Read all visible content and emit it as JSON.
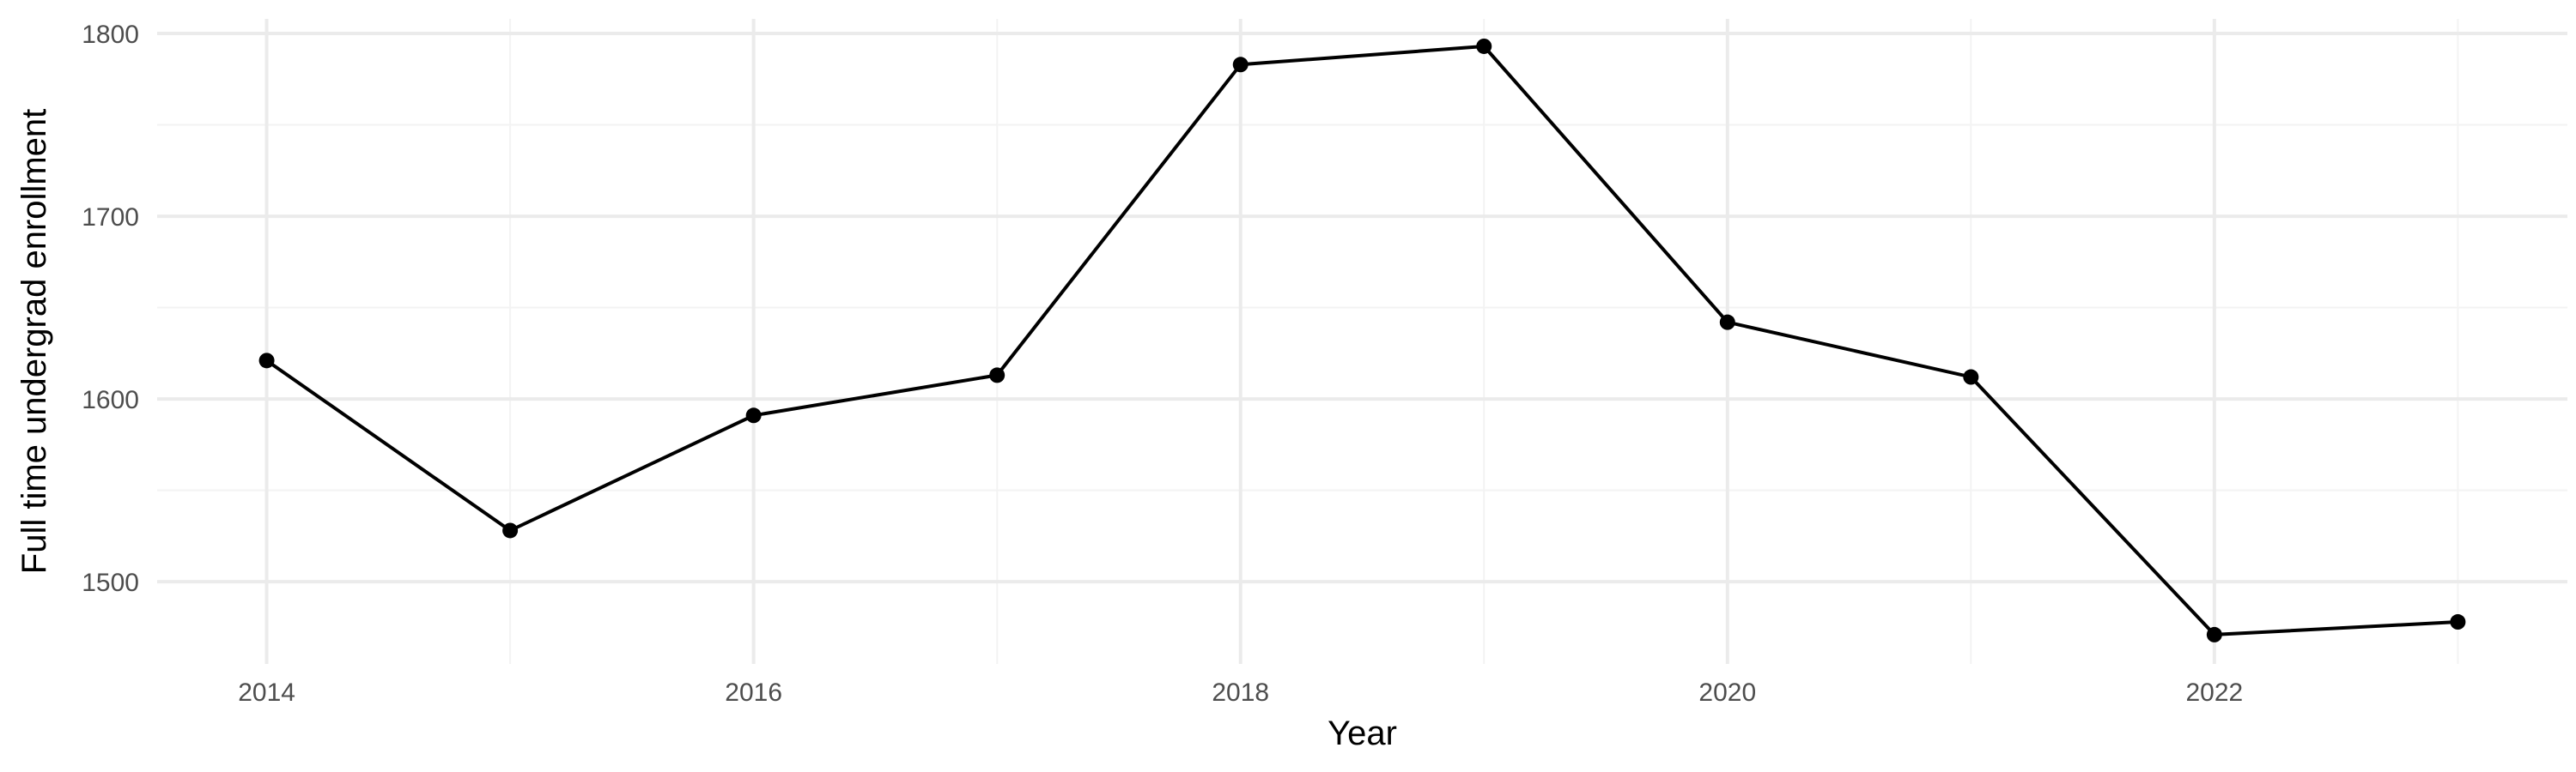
{
  "chart_data": {
    "type": "line",
    "title": "",
    "xlabel": "Year",
    "ylabel": "Full time undergrad enrollment",
    "x": [
      2014,
      2015,
      2016,
      2017,
      2018,
      2019,
      2020,
      2021,
      2022,
      2023
    ],
    "series": [
      {
        "values": [
          1621,
          1528,
          1591,
          1613,
          1783,
          1793,
          1642,
          1612,
          1471,
          1478
        ]
      }
    ],
    "xlim": [
      2013.55,
      2023.45
    ],
    "ylim": [
      1455,
      1808
    ],
    "xticks": [
      2014,
      2016,
      2018,
      2020,
      2022
    ],
    "yticks": [
      1500,
      1600,
      1700,
      1800
    ],
    "x_minor_gridlines": [
      2015,
      2017,
      2019,
      2021,
      2023
    ],
    "y_minor_gridlines": [
      1550,
      1650,
      1750
    ],
    "grid": true,
    "legend": "none",
    "colors": {
      "line": "#000000",
      "point": "#000000",
      "grid_major": "#ebebeb",
      "grid_minor": "#f3f3f3",
      "tick_text": "#4d4d4d",
      "axis_title": "#000000",
      "background": "#ffffff"
    }
  }
}
